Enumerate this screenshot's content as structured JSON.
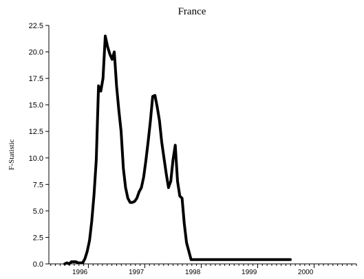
{
  "chart_data": {
    "type": "line",
    "title": "France",
    "xlabel": "",
    "ylabel": "F-Statistic",
    "ylim": [
      0,
      22.5
    ],
    "xlim": [
      1995.3,
      2000.75
    ],
    "grid": false,
    "legend": "none",
    "y_ticks": [
      "0.0",
      "2.5",
      "5.0",
      "7.5",
      "10.0",
      "12.5",
      "15.0",
      "17.5",
      "20.0",
      "22.5"
    ],
    "x_tick_labels": [
      "1996",
      "1997",
      "1998",
      "1999",
      "2000"
    ],
    "x_tick_label_positions": [
      1995.85,
      1996.85,
      1997.85,
      1998.85,
      1999.85
    ],
    "line_color": "#000000",
    "series": [
      {
        "x": [
          1995.58,
          1995.62,
          1995.66,
          1995.7,
          1995.74,
          1995.78,
          1995.82,
          1995.86,
          1995.9,
          1995.94,
          1995.98,
          1996.02,
          1996.06,
          1996.1,
          1996.14,
          1996.18,
          1996.22,
          1996.26,
          1996.3,
          1996.34,
          1996.38,
          1996.42,
          1996.46,
          1996.5,
          1996.54,
          1996.58,
          1996.62,
          1996.66,
          1996.7,
          1996.74,
          1996.78,
          1996.82,
          1996.86,
          1996.9,
          1996.94,
          1996.98,
          1997.02,
          1997.06,
          1997.1,
          1997.14,
          1997.18,
          1997.22,
          1997.26,
          1997.3,
          1997.34,
          1997.38,
          1997.42,
          1997.46,
          1997.5,
          1997.54,
          1997.58,
          1997.62,
          1997.66,
          1997.7,
          1997.74,
          1997.78,
          1997.82,
          1997.86,
          1997.9,
          1997.94,
          1997.98,
          1998.02,
          1998.06,
          1998.1,
          1998.14,
          1998.18,
          1998.22,
          1998.26,
          1998.3,
          1998.34,
          1998.38,
          1998.42,
          1998.46,
          1998.5,
          1998.54,
          1998.58,
          1998.62,
          1998.66,
          1998.7,
          1998.74,
          1998.78,
          1998.82,
          1998.86,
          1998.9,
          1998.94,
          1998.98,
          1999.02,
          1999.06,
          1999.1,
          1999.14,
          1999.18,
          1999.22,
          1999.26,
          1999.3,
          1999.34,
          1999.38,
          1999.42,
          1999.46,
          1999.5,
          1999.54,
          1999.58
        ],
        "values": [
          0.0,
          0.1,
          0.0,
          0.2,
          0.2,
          0.2,
          0.1,
          0.1,
          0.1,
          0.5,
          1.2,
          2.2,
          4.0,
          6.5,
          9.8,
          16.8,
          16.3,
          17.5,
          21.5,
          20.5,
          19.8,
          19.3,
          20.0,
          16.8,
          14.5,
          12.5,
          9.0,
          7.2,
          6.2,
          5.8,
          5.8,
          5.9,
          6.2,
          6.8,
          7.2,
          8.2,
          9.8,
          11.6,
          13.5,
          15.8,
          15.9,
          14.8,
          13.5,
          11.5,
          10.0,
          8.5,
          7.2,
          7.8,
          9.8,
          11.2,
          7.8,
          6.4,
          6.2,
          3.8,
          2.0,
          1.2,
          0.4,
          0.4,
          0.4,
          0.4,
          0.4,
          0.4,
          0.4,
          0.4,
          0.4,
          0.4,
          0.4,
          0.4,
          0.4,
          0.4,
          0.4,
          0.4,
          0.4,
          0.4,
          0.4,
          0.4,
          0.4,
          0.4,
          0.4,
          0.4,
          0.4,
          0.4,
          0.4,
          0.4,
          0.4,
          0.4,
          0.4,
          0.4,
          0.4,
          0.4,
          0.4,
          0.4,
          0.4,
          0.4,
          0.4,
          0.4,
          0.4,
          0.4,
          0.4,
          0.4,
          0.4
        ]
      }
    ]
  }
}
